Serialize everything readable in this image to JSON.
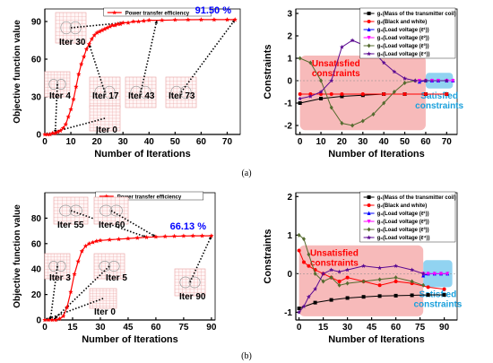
{
  "captions": [
    "(a)",
    "(b)"
  ],
  "colors": {
    "pte": "#ff0000",
    "pte_marker": "#ff0000",
    "g1": "#000000",
    "g2": "#ff0000",
    "g3": "#0000ff",
    "g4": "#ff00ff",
    "g5": "#556b2f",
    "g6": "#5b0a91",
    "unsat_fill": "#f4a3a3",
    "sat_fill": "#7ecbef",
    "unsat_text": "#ff0000",
    "sat_text": "#1aa0dc",
    "final_text": "#0000ff",
    "icon_grid": "#e8a0a0"
  },
  "chart_data": [
    {
      "id": "a-objective",
      "type": "line",
      "xlabel": "Number of Iterations",
      "ylabel": "Objective function value",
      "xlim": [
        0,
        75
      ],
      "ylim": [
        0,
        100
      ],
      "xticks": [
        "0",
        "10",
        "20",
        "30",
        "40",
        "50",
        "60",
        "70"
      ],
      "yticks": [
        "0",
        "30",
        "60",
        "90"
      ],
      "legend": "Power transfer efficiency",
      "legend_position": "top",
      "final_value_label": "91.50 %",
      "series": [
        {
          "name": "Power transfer efficiency",
          "x": [
            0,
            1,
            2,
            3,
            4,
            5,
            6,
            7,
            8,
            9,
            10,
            11,
            12,
            13,
            14,
            15,
            16,
            17,
            18,
            19,
            20,
            21,
            22,
            23,
            24,
            25,
            26,
            27,
            28,
            29,
            30,
            32,
            34,
            36,
            38,
            40,
            45,
            50,
            55,
            60,
            65,
            70,
            73
          ],
          "y": [
            0,
            0,
            0,
            1,
            1,
            2,
            3,
            5,
            8,
            14,
            20,
            28,
            38,
            48,
            56,
            62,
            68,
            72,
            76,
            79,
            81,
            82,
            83,
            84,
            85,
            86,
            87,
            87,
            88,
            88,
            89,
            89,
            90,
            90,
            90.5,
            91,
            91,
            91.3,
            91.4,
            91.5,
            91.5,
            91.5,
            91.5
          ]
        }
      ],
      "iteration_labels": [
        {
          "text": "Iter 30",
          "x": 30,
          "y": 89
        },
        {
          "text": "Iter 4",
          "x": 4,
          "y": 1
        },
        {
          "text": "Iter 17",
          "x": 17,
          "y": 72
        },
        {
          "text": "Iter 43",
          "x": 43,
          "y": 91
        },
        {
          "text": "Iter 73",
          "x": 73,
          "y": 91.5
        },
        {
          "text": "Iter 0",
          "x": 0,
          "y": 0
        }
      ]
    },
    {
      "id": "a-constraints",
      "type": "scatter",
      "xlabel": "Number of Iterations",
      "ylabel": "Constraints",
      "xlim": [
        -2,
        75
      ],
      "ylim": [
        -2.4,
        3.2
      ],
      "xticks": [
        "0",
        "10",
        "20",
        "30",
        "40",
        "50",
        "60",
        "70"
      ],
      "yticks": [
        "-2",
        "-1",
        "0",
        "1",
        "2",
        "3"
      ],
      "legend_position": "top-right",
      "region_labels": {
        "unsatisfied": "Unsatisfied constraints",
        "satisfied": "Satisfied constraints"
      },
      "regions": {
        "unsatisfied": [
          0,
          60
        ],
        "satisfied": [
          60,
          73
        ]
      },
      "series": [
        {
          "name": "g₁(Mass of the transmitter coil)",
          "marker": "square",
          "x": [
            0,
            10,
            20,
            30,
            40,
            50,
            60,
            70
          ],
          "y": [
            -1,
            -0.8,
            -0.7,
            -0.65,
            -0.6,
            -0.6,
            -0.6,
            -0.6
          ]
        },
        {
          "name": "g₂(Black and white)",
          "marker": "circle",
          "x": [
            0,
            5,
            10,
            15,
            20,
            30,
            40,
            50,
            60,
            70
          ],
          "y": [
            -0.6,
            -0.6,
            -0.6,
            -0.6,
            -0.6,
            -0.6,
            -0.6,
            -0.6,
            -0.6,
            -0.6
          ]
        },
        {
          "name": "g₃(Load voltage (ℓ¹))",
          "marker": "triangle",
          "x": [
            57,
            60,
            63,
            66,
            70,
            73
          ],
          "y": [
            -0.05,
            0,
            0,
            0,
            0,
            0
          ]
        },
        {
          "name": "g₄(Load voltage (ℓ²))",
          "marker": "triangle-down",
          "x": [
            57,
            60,
            63,
            66,
            70,
            73
          ],
          "y": [
            0,
            0,
            0,
            0,
            0,
            0
          ]
        },
        {
          "name": "g₅(Load voltage (ℓ³))",
          "marker": "diamond",
          "x": [
            0,
            5,
            10,
            15,
            20,
            25,
            30,
            35,
            40,
            45,
            50,
            55,
            60
          ],
          "y": [
            1,
            0.8,
            0,
            -1.2,
            -1.9,
            -2,
            -1.8,
            -1.5,
            -1,
            -0.5,
            -0.1,
            0,
            0
          ]
        },
        {
          "name": "g₆(Load voltage (ℓ⁴))",
          "marker": "star",
          "x": [
            0,
            5,
            10,
            15,
            20,
            25,
            30,
            35,
            40,
            45,
            50,
            55,
            60,
            70
          ],
          "y": [
            -0.8,
            -0.7,
            -0.5,
            0,
            1.5,
            1.8,
            1.6,
            1.3,
            0.8,
            0.4,
            0.1,
            0,
            0,
            0
          ]
        }
      ]
    },
    {
      "id": "b-objective",
      "type": "line",
      "xlabel": "Number of Iterations",
      "ylabel": "Objective function value",
      "xlim": [
        0,
        92
      ],
      "ylim": [
        0,
        100
      ],
      "xticks": [
        "0",
        "15",
        "30",
        "45",
        "60",
        "75",
        "90"
      ],
      "yticks": [
        "0",
        "20",
        "40",
        "60",
        "80"
      ],
      "legend": "Power transfer efficiency",
      "legend_position": "top",
      "final_value_label": "66.13 %",
      "series": [
        {
          "name": "Power transfer efficiency",
          "x": [
            0,
            2,
            4,
            6,
            8,
            10,
            12,
            14,
            16,
            18,
            20,
            22,
            24,
            26,
            28,
            30,
            35,
            40,
            45,
            50,
            55,
            60,
            65,
            70,
            75,
            80,
            85,
            90
          ],
          "y": [
            0,
            0,
            0,
            0,
            1,
            3,
            10,
            22,
            36,
            46,
            54,
            58,
            60,
            61,
            62,
            62.5,
            63,
            63.5,
            64,
            64.5,
            65,
            65.3,
            65.6,
            65.8,
            66,
            66.1,
            66.1,
            66.13
          ]
        }
      ],
      "iteration_labels": [
        {
          "text": "Iter 55",
          "x": 55,
          "y": 65
        },
        {
          "text": "Iter 60",
          "x": 60,
          "y": 65.3
        },
        {
          "text": "Iter 3",
          "x": 3,
          "y": 0
        },
        {
          "text": "Iter 5",
          "x": 5,
          "y": 0.5
        },
        {
          "text": "Iter 90",
          "x": 90,
          "y": 66.13
        },
        {
          "text": "Iter 0",
          "x": 0,
          "y": 0
        }
      ]
    },
    {
      "id": "b-constraints",
      "type": "scatter",
      "xlabel": "Number of Iterations",
      "ylabel": "Constraints",
      "xlim": [
        -2,
        98
      ],
      "ylim": [
        -1.2,
        2.1
      ],
      "xticks": [
        "0",
        "15",
        "30",
        "45",
        "60",
        "75",
        "90"
      ],
      "yticks": [
        "-1",
        "0",
        "1",
        "2"
      ],
      "legend_position": "top-right",
      "region_labels": {
        "unsatisfied": "Unsatisfied constraints",
        "satisfied": "Satisfied constraints"
      },
      "regions": {
        "unsatisfied": [
          0,
          77
        ],
        "satisfied": [
          77,
          95
        ]
      },
      "series": [
        {
          "name": "g₁(Mass of the transmitter coil)",
          "marker": "square",
          "x": [
            0,
            10,
            20,
            30,
            40,
            50,
            60,
            70,
            80,
            90
          ],
          "y": [
            -0.9,
            -0.75,
            -0.68,
            -0.63,
            -0.6,
            -0.58,
            -0.57,
            -0.56,
            -0.55,
            -0.55
          ]
        },
        {
          "name": "g₂(Black and white)",
          "marker": "circle",
          "x": [
            0,
            3,
            6,
            10,
            15,
            20,
            25,
            30,
            40,
            50,
            60,
            70,
            80,
            90
          ],
          "y": [
            0.6,
            0.3,
            0.2,
            0.1,
            0,
            -0.1,
            -0.2,
            -0.1,
            -0.2,
            -0.3,
            -0.2,
            -0.25,
            -0.35,
            -0.4
          ]
        },
        {
          "name": "g₃(Load voltage (ℓ¹))",
          "marker": "triangle",
          "x": [
            77,
            80,
            84,
            88,
            92
          ],
          "y": [
            -0.05,
            0,
            0,
            0,
            0
          ]
        },
        {
          "name": "g₄(Load voltage (ℓ²))",
          "marker": "triangle-down",
          "x": [
            77,
            80,
            84,
            88,
            92
          ],
          "y": [
            0,
            0,
            0,
            0,
            0
          ]
        },
        {
          "name": "g₅(Load voltage (ℓ³))",
          "marker": "diamond",
          "x": [
            0,
            3,
            6,
            10,
            15,
            20,
            25,
            30,
            40,
            50,
            60,
            70,
            77
          ],
          "y": [
            1,
            0.9,
            0.5,
            0,
            -0.2,
            -0.1,
            -0.3,
            -0.25,
            -0.2,
            -0.15,
            -0.1,
            -0.2,
            -0.3
          ]
        },
        {
          "name": "g₆(Load voltage (ℓ⁴))",
          "marker": "star",
          "x": [
            0,
            3,
            6,
            10,
            15,
            20,
            25,
            30,
            40,
            50,
            60,
            70,
            77
          ],
          "y": [
            -1,
            -0.85,
            -0.6,
            -0.4,
            0,
            0.1,
            0.05,
            0.1,
            0.2,
            0.15,
            0.2,
            0.1,
            0
          ]
        }
      ]
    }
  ]
}
